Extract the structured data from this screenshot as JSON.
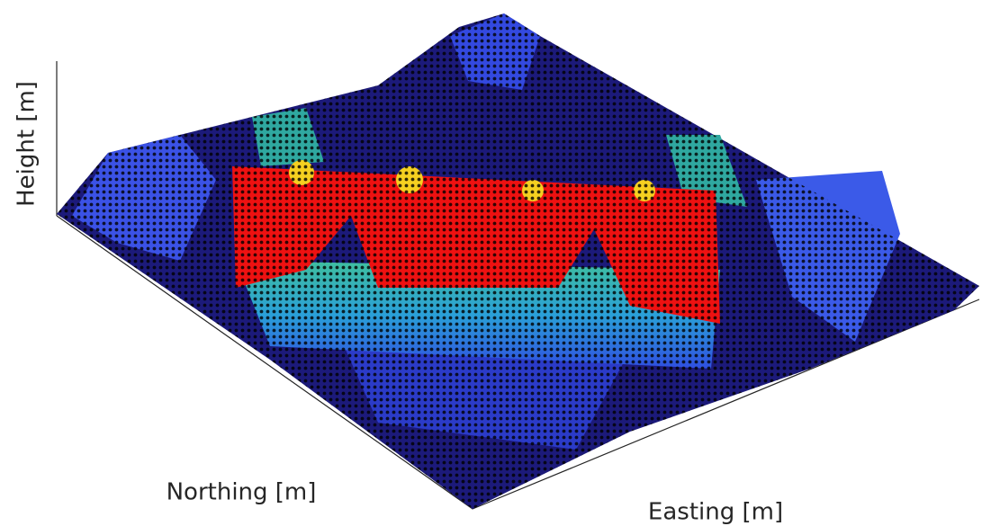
{
  "chart_data": {
    "type": "surface",
    "x_label": "Easting [m]",
    "y_label": "Northing [m]",
    "z_label": "Height [m]"
  }
}
